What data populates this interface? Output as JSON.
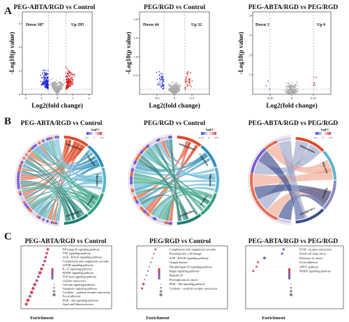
{
  "panel_letters": [
    "A",
    "B",
    "C"
  ],
  "legend": {
    "logfc_label": "logFC",
    "ticks_b1": [
      "-0.5",
      "0",
      "0.5"
    ],
    "ticks_b2": [
      "-0.25",
      "0",
      "0.25"
    ],
    "ticks_b3": [
      "-0.2",
      "0",
      "0.2"
    ]
  },
  "chart_data": [
    {
      "type": "scatter",
      "panel": "A1",
      "title": "PEG-ABTA/RGD vs Control",
      "xlabel": "Log2(fold change)",
      "ylabel": "-Log10(p value)",
      "xlim": [
        -2.2,
        2.2
      ],
      "ylim": [
        0,
        7
      ],
      "xticks": [
        "-2",
        "-1",
        "0",
        "1",
        "2"
      ],
      "yticks": [
        "0",
        "2",
        "4",
        "6"
      ],
      "annotations": {
        "down": "Down 307",
        "up": "Up 295"
      },
      "colors": {
        "down": "#1a24d8",
        "up": "#d81a1a",
        "ns": "#aaaaaa"
      }
    },
    {
      "type": "scatter",
      "panel": "A2",
      "title": "PEG/RGD vs Control",
      "xlabel": "Log2(fold change)",
      "ylabel": "-Log10(p value)",
      "xlim": [
        -1.0,
        1.0
      ],
      "ylim": [
        0,
        2.2
      ],
      "xticks": [
        "-0.5",
        "0",
        "0.5"
      ],
      "yticks": [
        "0.5",
        "1.0",
        "1.5",
        "2.0"
      ],
      "annotations": {
        "down": "Down 44",
        "up": "Up 32"
      },
      "colors": {
        "down": "#1a24d8",
        "up": "#d81a1a",
        "ns": "#aaaaaa"
      }
    },
    {
      "type": "scatter",
      "panel": "A3",
      "title": "PEG-ABTA/RGD vs PEG/RGD",
      "xlabel": "Log2(fold change)",
      "ylabel": "-Log10(p value)",
      "xlim": [
        -0.45,
        0.45
      ],
      "ylim": [
        0,
        4.2
      ],
      "xticks": [
        "-0.25",
        "0",
        "0.25"
      ],
      "yticks": [
        "1",
        "2",
        "3",
        "4"
      ],
      "annotations": {
        "down": "Down 3",
        "up": "Up 6"
      },
      "colors": {
        "down": "#1a24d8",
        "up": "#d81a1a",
        "ns": "#aaaaaa"
      }
    },
    {
      "type": "chord",
      "panel": "B1",
      "title": "PEG-ABTA/RGD vs Control",
      "sectors": [
        {
          "name": "Inflammation",
          "color": "#e04b2a"
        },
        {
          "name": "Coagulation",
          "color": "#2f8fb8"
        },
        {
          "name": "Migration",
          "color": "#5ab3d1"
        },
        {
          "name": "Apoptosis",
          "color": "#33a081"
        },
        {
          "name": "Cell adhesion",
          "color": "#1f7e73"
        }
      ]
    },
    {
      "type": "chord",
      "panel": "B2",
      "title": "PEG/RGD vs Control",
      "sectors": [
        {
          "name": "Inflammation",
          "color": "#e04b2a"
        },
        {
          "name": "Coagulation",
          "color": "#2f8fb8"
        },
        {
          "name": "Migration",
          "color": "#5ab3d1"
        },
        {
          "name": "Apoptosis",
          "color": "#33a081"
        },
        {
          "name": "Angiogenesis",
          "color": "#1f7e73"
        }
      ]
    },
    {
      "type": "chord",
      "panel": "B3",
      "title": "PEG-ABTA/RGD vs PEG/RGD",
      "sectors": [
        {
          "name": "Inflammation",
          "color": "#e04b2a"
        },
        {
          "name": "Migration",
          "color": "#5ab3d1"
        },
        {
          "name": "Apoptosis",
          "color": "#8a8ac0"
        },
        {
          "name": "Cell adhesion",
          "color": "#3b4d8a"
        }
      ]
    },
    {
      "type": "scatter",
      "panel": "C1",
      "title": "PEG-ABTA/RGD vs Control",
      "xlabel": "Enrichment",
      "terms": [
        {
          "name": "NF-kappa B signaling pathway",
          "enrichment": 0.112,
          "color": "#e0403a",
          "size": 3.0
        },
        {
          "name": "TNF signaling pathway",
          "enrichment": 0.108,
          "color": "#cf4a60",
          "size": 3.0
        },
        {
          "name": "AGE - RAGE signaling pathway",
          "enrichment": 0.104,
          "color": "#b85280",
          "size": 3.0
        },
        {
          "name": "Complement and coagulation cascades",
          "enrichment": 0.1,
          "color": "#a45c99",
          "size": 3.3
        },
        {
          "name": "mTOR signaling pathway",
          "enrichment": 0.094,
          "color": "#9463ac",
          "size": 3.0
        },
        {
          "name": "IL-17 signaling pathway",
          "enrichment": 0.088,
          "color": "#e0403a",
          "size": 3.6
        },
        {
          "name": "MAPK signaling pathway",
          "enrichment": 0.082,
          "color": "#d0485c",
          "size": 4.0
        },
        {
          "name": "TGF beta signaling pathway",
          "enrichment": 0.076,
          "color": "#6a74d0",
          "size": 3.0
        },
        {
          "name": "Cellular senescence",
          "enrichment": 0.07,
          "color": "#b05288",
          "size": 3.3
        },
        {
          "name": "Calcium signaling pathway",
          "enrichment": 0.062,
          "color": "#c04c70",
          "size": 3.8
        },
        {
          "name": "Apoptosis signaling pathway",
          "enrichment": 0.056,
          "color": "#d0485c",
          "size": 3.6
        },
        {
          "name": "Cytokine - cytokine receptor interaction",
          "enrichment": 0.05,
          "color": "#d84a50",
          "size": 4.0
        },
        {
          "name": "Focal adhesion",
          "enrichment": 0.044,
          "color": "#8a6ab8",
          "size": 3.3
        },
        {
          "name": "PI3K - Akt signaling pathway",
          "enrichment": 0.036,
          "color": "#e0403a",
          "size": 4.0
        },
        {
          "name": "Lipid and Atherosclerosis",
          "enrichment": 0.03,
          "color": "#c04c70",
          "size": 3.6
        }
      ]
    },
    {
      "type": "scatter",
      "panel": "C2",
      "title": "PEG/RGD vs Control",
      "xlabel": "Enrichment",
      "terms": [
        {
          "name": "Complement and coagulation cascades",
          "enrichment": 0.095,
          "color": "#e0403a",
          "size": 2.2
        },
        {
          "name": "Hematopoietic cell lineage",
          "enrichment": 0.088,
          "color": "#d0485c",
          "size": 1.8
        },
        {
          "name": "AGE - RAGE signaling pathway",
          "enrichment": 0.082,
          "color": "#c04c70",
          "size": 1.8
        },
        {
          "name": "Chagas disease",
          "enrichment": 0.076,
          "color": "#b05288",
          "size": 1.8
        },
        {
          "name": "Phospholipase D signaling pathway",
          "enrichment": 0.07,
          "color": "#9463ac",
          "size": 1.8
        },
        {
          "name": "Hippo signaling pathway",
          "enrichment": 0.064,
          "color": "#8a6ab8",
          "size": 1.8
        },
        {
          "name": "Hepatitis B",
          "enrichment": 0.058,
          "color": "#7a70c4",
          "size": 1.8
        },
        {
          "name": "Proteoglycans in cancer",
          "enrichment": 0.05,
          "color": "#6a74d0",
          "size": 1.8
        },
        {
          "name": "PI3K - Akt signaling pathway",
          "enrichment": 0.046,
          "color": "#e0403a",
          "size": 2.8
        },
        {
          "name": "Cytokine - cytokine receptor interaction",
          "enrichment": 0.04,
          "color": "#d84a50",
          "size": 2.6
        }
      ]
    },
    {
      "type": "scatter",
      "panel": "C3",
      "title": "PEG-ABTA/RGD vs PEG/RGD",
      "xlabel": "Enrichment",
      "terms": [
        {
          "name": "ECM - receptor interaction",
          "enrichment": 0.11,
          "color": "#4a6ad8",
          "size": 2.6
        },
        {
          "name": "Small cell lung cancer",
          "enrichment": 0.105,
          "color": "#4a6ad8",
          "size": 2.6
        },
        {
          "name": "Pathways in cancer",
          "enrichment": 0.05,
          "color": "#7a5ab8",
          "size": 3.2
        },
        {
          "name": "Focal adhesion",
          "enrichment": 0.03,
          "color": "#c04c70",
          "size": 2.4
        },
        {
          "name": "ARVC pathway",
          "enrichment": 0.025,
          "color": "#d84a50",
          "size": 2.4
        },
        {
          "name": "MAPK signaling pathway",
          "enrichment": 0.015,
          "color": "#e0403a",
          "size": 2.4
        }
      ]
    }
  ]
}
